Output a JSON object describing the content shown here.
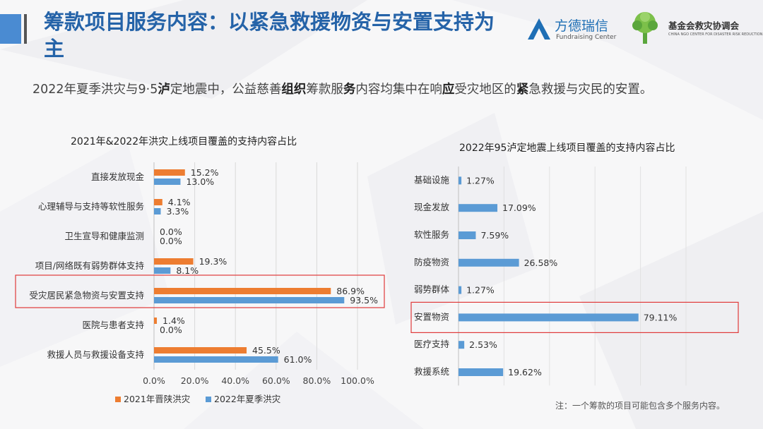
{
  "header": {
    "title": "筹款项目服务内容：以紧急救援物资与安置支持为主",
    "logo_fdrc_cn": "方德瑞信",
    "logo_fdrc_en": "Fundraising Center",
    "logo_cndr_cn": "基金会救灾协调会",
    "logo_cndr_en": "CHINA NGO CENTER FOR DISASTER RISK REDUCTION"
  },
  "subtitle": {
    "part1": "2022年夏季洪灾与9·5",
    "bold1": "泸",
    "part2": "定地震中，公益慈善",
    "bold2": "组织",
    "part3": "筹款服",
    "bold3": "务",
    "part4": "内容均集中在响",
    "bold4": "应",
    "part5": "受灾地区的",
    "bold5": "紧",
    "part6": "急救援与灾民的安置。"
  },
  "colors": {
    "orange": "#ed7d31",
    "blue": "#5b9bd5",
    "highlight": "#e03a3a",
    "title_blue": "#2563a8"
  },
  "chart_data": [
    {
      "type": "bar",
      "orientation": "horizontal",
      "title": "2021年&2022年洪灾上线项目覆盖的支持内容占比",
      "categories": [
        "直接发放现金",
        "心理辅导与支持等软性服务",
        "卫生宣导和健康监测",
        "项目/网络既有弱势群体支持",
        "受灾居民紧急物资与安置支持",
        "医院与患者支持",
        "救援人员与救援设备支持"
      ],
      "series": [
        {
          "name": "2021年晋陕洪灾",
          "values": [
            15.2,
            4.1,
            0.0,
            19.3,
            86.9,
            1.4,
            45.5
          ],
          "labels": [
            "15.2%",
            "4.1%",
            "0.0%",
            "19.3%",
            "86.9%",
            "1.4%",
            "45.5%"
          ]
        },
        {
          "name": "2022年夏季洪灾",
          "values": [
            13.0,
            3.3,
            0.0,
            8.1,
            93.5,
            0.0,
            61.0
          ],
          "labels": [
            "13.0%",
            "3.3%",
            "0.0%",
            "8.1%",
            "93.5%",
            "0.0%",
            "61.0%"
          ]
        }
      ],
      "xlim": [
        0,
        100
      ],
      "xticks": [
        "0.0%",
        "20.0%",
        "40.0%",
        "60.0%",
        "80.0%",
        "100.0%"
      ],
      "grid": true,
      "legend": "bottom",
      "highlight_category": "受灾居民紧急物资与安置支持"
    },
    {
      "type": "bar",
      "orientation": "horizontal",
      "title": "2022年95泸定地震上线项目覆盖的支持内容占比",
      "categories": [
        "基础设施",
        "现金发放",
        "软性服务",
        "防疫物资",
        "弱势群体",
        "安置物资",
        "医疗支持",
        "救援系统"
      ],
      "series": [
        {
          "values": [
            1.27,
            17.09,
            7.59,
            26.58,
            1.27,
            79.11,
            2.53,
            19.62
          ],
          "labels": [
            "1.27%",
            "17.09%",
            "7.59%",
            "26.58%",
            "1.27%",
            "79.11%",
            "2.53%",
            "19.62%"
          ]
        }
      ],
      "xlim": [
        0,
        100
      ],
      "grid": true,
      "highlight_category": "安置物资"
    }
  ],
  "footnote": "注：一个筹款的项目可能包含多个服务内容。"
}
